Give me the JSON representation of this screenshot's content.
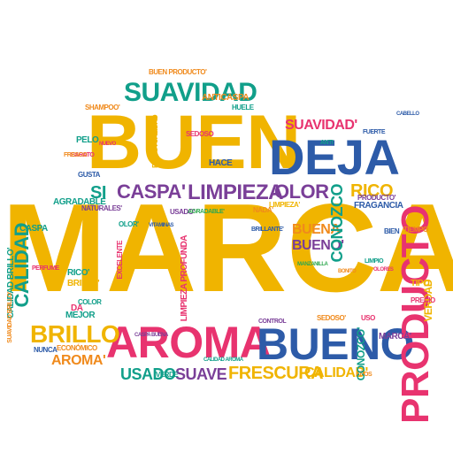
{
  "wordcloud": {
    "palette": {
      "yellow": "#f0b400",
      "pink": "#e8336f",
      "teal": "#119f8a",
      "blue": "#2d5ba8",
      "purple": "#7a3f98",
      "orange": "#f08a1c",
      "green": "#2fa84f"
    },
    "words": [
      "MARCA",
      "BUEN",
      "AROMA",
      "BUENO",
      "PRODUCTO",
      "DEJA",
      "SUAVIDAD",
      "LIMPIEZA",
      "BRILLO",
      "CASPA'",
      "OLOR",
      "SUAVIDAD'",
      "SI",
      "RICO",
      "FRESCURA",
      "CALIDAD",
      "SUAVE",
      "USADO",
      "AROMA'",
      "BUENO'",
      "BUENA",
      "CONOZCO",
      "CALIDAD'",
      "FRAGANCIA",
      "BUEN PRODUCTO'",
      "LIMPIEZA PROFUNDA",
      "ANTICASPA",
      "CASPA",
      "AGRADABLE",
      "PELO",
      "MEJOR",
      "ECONÓMICO",
      "BRILLO'",
      "RICO'",
      "DA",
      "NUNCA",
      "VERDAD",
      "TIPO",
      "MARCA'",
      "HACE",
      "SEDOSO",
      "GUSTA",
      "USO",
      "BIEN",
      "TIEMPO",
      "NADA'",
      "COLOR",
      "AÑOS",
      "CONTROL",
      "HUELE",
      "VERDE",
      "PRECIO",
      "CONOZCO'",
      "CALIDAD BRILLO'",
      "BUENA CALIDAD",
      "SHAMPOO'",
      "BARATO",
      "LIMPIEZA'",
      "SEDOSO'",
      "NATURALES'",
      "EXCELENTE",
      "FRESCO",
      "SUAVIDAD BRILLO'",
      "USADO'",
      "ANTI",
      "OLOR'",
      "PRODUCTO'",
      "BRILLANTE'",
      "PERFUME",
      "FUERTE",
      "CABELLO",
      "LIMPIO",
      "MANZANILLA",
      "OLORES",
      "VITAMINAS",
      "NUEVO",
      "BONITO",
      "CALIDAD AROMA",
      "AGRADABLE'",
      "CASPA BUENA"
    ]
  }
}
